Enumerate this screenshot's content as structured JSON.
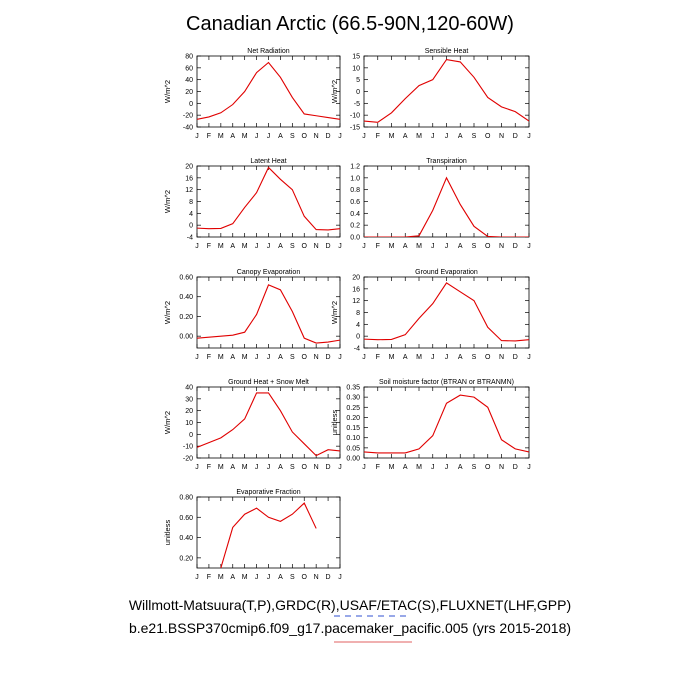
{
  "title": "Canadian Arctic (66.5-90N,120-60W)",
  "footer": {
    "line1": "Willmott-Matsuura(T,P),GRDC(R),USAF/ETAC(S),FLUXNET(LHF,GPP)",
    "line2": "b.e21.BSSP370cmip6.f09_g17.pacemaker_pacific.005 (yrs 2015-2018)",
    "line1_underline_color": "#3050d0",
    "line2_underline_color": "#e06060"
  },
  "colors": {
    "series": "#e00000"
  },
  "months": [
    "J",
    "F",
    "M",
    "A",
    "M",
    "J",
    "J",
    "A",
    "S",
    "O",
    "N",
    "D",
    "J"
  ],
  "chart_data": [
    {
      "type": "line",
      "title": "Net Radiation",
      "ylabel": "W/m^2",
      "ylim": [
        -40,
        80
      ],
      "yticks": [
        80,
        60,
        40,
        20,
        0,
        -20,
        -40
      ],
      "ytick_labels": [
        "80",
        "60",
        "40",
        "20",
        "0",
        "-20",
        "-40"
      ],
      "values": [
        -27,
        -23,
        -16,
        -2,
        20,
        52,
        69,
        44,
        10,
        -18,
        -21,
        -24,
        -27
      ]
    },
    {
      "type": "line",
      "title": "Sensible Heat",
      "ylabel": "W/m^2",
      "ylim": [
        -15,
        15
      ],
      "yticks": [
        15,
        10,
        5,
        0,
        -5,
        -10,
        -15
      ],
      "ytick_labels": [
        "15",
        "10",
        "5",
        "0",
        "-5",
        "-10",
        "-15"
      ],
      "values": [
        -12.5,
        -13,
        -9,
        -3,
        2.5,
        5,
        13.5,
        12.5,
        6,
        -2.5,
        -6.5,
        -8.5,
        -12.5
      ]
    },
    {
      "type": "line",
      "title": "Latent Heat",
      "ylabel": "W/m^2",
      "ylim": [
        -4,
        20
      ],
      "yticks": [
        20,
        16,
        12,
        8,
        4,
        0,
        -4
      ],
      "ytick_labels": [
        "20",
        "16",
        "12",
        "8",
        "4",
        "0",
        "-4"
      ],
      "values": [
        -1,
        -1.2,
        -1.1,
        0.5,
        6,
        11,
        19.5,
        15.5,
        12,
        3,
        -1.5,
        -1.6,
        -1.2
      ]
    },
    {
      "type": "line",
      "title": "Transpiration",
      "ylabel": "",
      "ylim": [
        0,
        1.2
      ],
      "yticks": [
        1.2,
        1.0,
        0.8,
        0.6,
        0.4,
        0.2,
        0.0
      ],
      "ytick_labels": [
        "1.2",
        "1.0",
        "0.8",
        "0.6",
        "0.4",
        "0.2",
        "0.0"
      ],
      "values": [
        0,
        0,
        0,
        0,
        0.02,
        0.45,
        1.0,
        0.55,
        0.18,
        0.01,
        0,
        0,
        0
      ]
    },
    {
      "type": "line",
      "title": "Canopy Evaporation",
      "ylabel": "W/m^2",
      "ylim": [
        -0.12,
        0.6
      ],
      "yticks": [
        0.6,
        0.4,
        0.2,
        0.0
      ],
      "ytick_labels": [
        "0.60",
        "0.40",
        "0.20",
        "0.00"
      ],
      "values": [
        -0.02,
        -0.01,
        0,
        0.01,
        0.04,
        0.22,
        0.52,
        0.47,
        0.25,
        -0.02,
        -0.07,
        -0.06,
        -0.04
      ]
    },
    {
      "type": "line",
      "title": "Ground Evaporation",
      "ylabel": "W/m^2",
      "ylim": [
        -4,
        20
      ],
      "yticks": [
        20,
        16,
        12,
        8,
        4,
        0,
        -4
      ],
      "ytick_labels": [
        "20",
        "16",
        "12",
        "8",
        "4",
        "0",
        "-4"
      ],
      "values": [
        -1,
        -1.2,
        -1.1,
        0.5,
        6,
        11,
        18,
        15,
        12,
        3,
        -1.5,
        -1.6,
        -1.2
      ]
    },
    {
      "type": "line",
      "title": "Ground Heat + Snow Melt",
      "ylabel": "W/m^2",
      "ylim": [
        -20,
        40
      ],
      "yticks": [
        40,
        30,
        20,
        10,
        0,
        -10,
        -20
      ],
      "ytick_labels": [
        "40",
        "30",
        "20",
        "10",
        "0",
        "-10",
        "-20"
      ],
      "values": [
        -11,
        -7,
        -3,
        4,
        13,
        35,
        35,
        20,
        2,
        -8,
        -18,
        -13,
        -14
      ]
    },
    {
      "type": "line",
      "title": "Soil moisture factor (BTRAN or BTRANMN)",
      "ylabel": "unitless",
      "ylim": [
        0,
        0.35
      ],
      "yticks": [
        0.35,
        0.3,
        0.25,
        0.2,
        0.15,
        0.1,
        0.05,
        0.0
      ],
      "ytick_labels": [
        "0.35",
        "0.30",
        "0.25",
        "0.20",
        "0.15",
        "0.10",
        "0.05",
        "0.00"
      ],
      "values": [
        0.03,
        0.025,
        0.025,
        0.025,
        0.045,
        0.11,
        0.27,
        0.31,
        0.3,
        0.25,
        0.09,
        0.045,
        0.03
      ]
    },
    {
      "type": "line",
      "title": "Evaporative Fraction",
      "ylabel": "unitless",
      "ylim": [
        0.1,
        0.8
      ],
      "yticks": [
        0.8,
        0.6,
        0.4,
        0.2
      ],
      "ytick_labels": [
        "0.80",
        "0.60",
        "0.40",
        "0.20"
      ],
      "values": [
        null,
        null,
        0.1,
        0.5,
        0.63,
        0.69,
        0.6,
        0.56,
        0.63,
        0.74,
        0.49,
        null,
        null
      ]
    }
  ]
}
